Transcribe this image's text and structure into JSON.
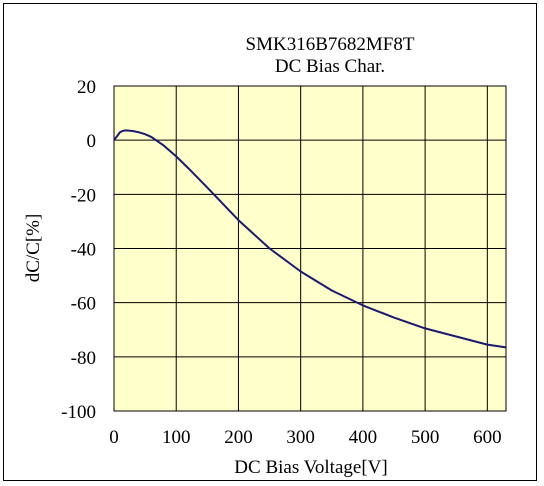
{
  "chart_data": {
    "type": "line",
    "title": "SMK316B7682MF8T",
    "subtitle": "DC Bias Char.",
    "xlabel": "DC Bias Voltage[V]",
    "ylabel": "dC/C[%]",
    "xlim": [
      0,
      630
    ],
    "ylim": [
      -100,
      20
    ],
    "xticks": [
      0,
      100,
      200,
      300,
      400,
      500,
      600
    ],
    "yticks": [
      20,
      0,
      -20,
      -40,
      -60,
      -80,
      -100
    ],
    "grid": true,
    "plot_background": "#ffffcc",
    "line_color": "#1a1a6e",
    "series": [
      {
        "x": [
          0,
          5,
          10,
          15,
          20,
          30,
          40,
          50,
          60,
          80,
          100,
          120,
          150,
          200,
          250,
          300,
          350,
          400,
          450,
          500,
          550,
          600,
          630
        ],
        "y": [
          0,
          1.5,
          3,
          3.5,
          3.6,
          3.4,
          2.9,
          2.2,
          1.2,
          -2,
          -6,
          -10.5,
          -17.5,
          -29.5,
          -40,
          -48.5,
          -55.5,
          -61,
          -65.5,
          -69.5,
          -72.5,
          -75.5,
          -76.5
        ]
      }
    ]
  }
}
